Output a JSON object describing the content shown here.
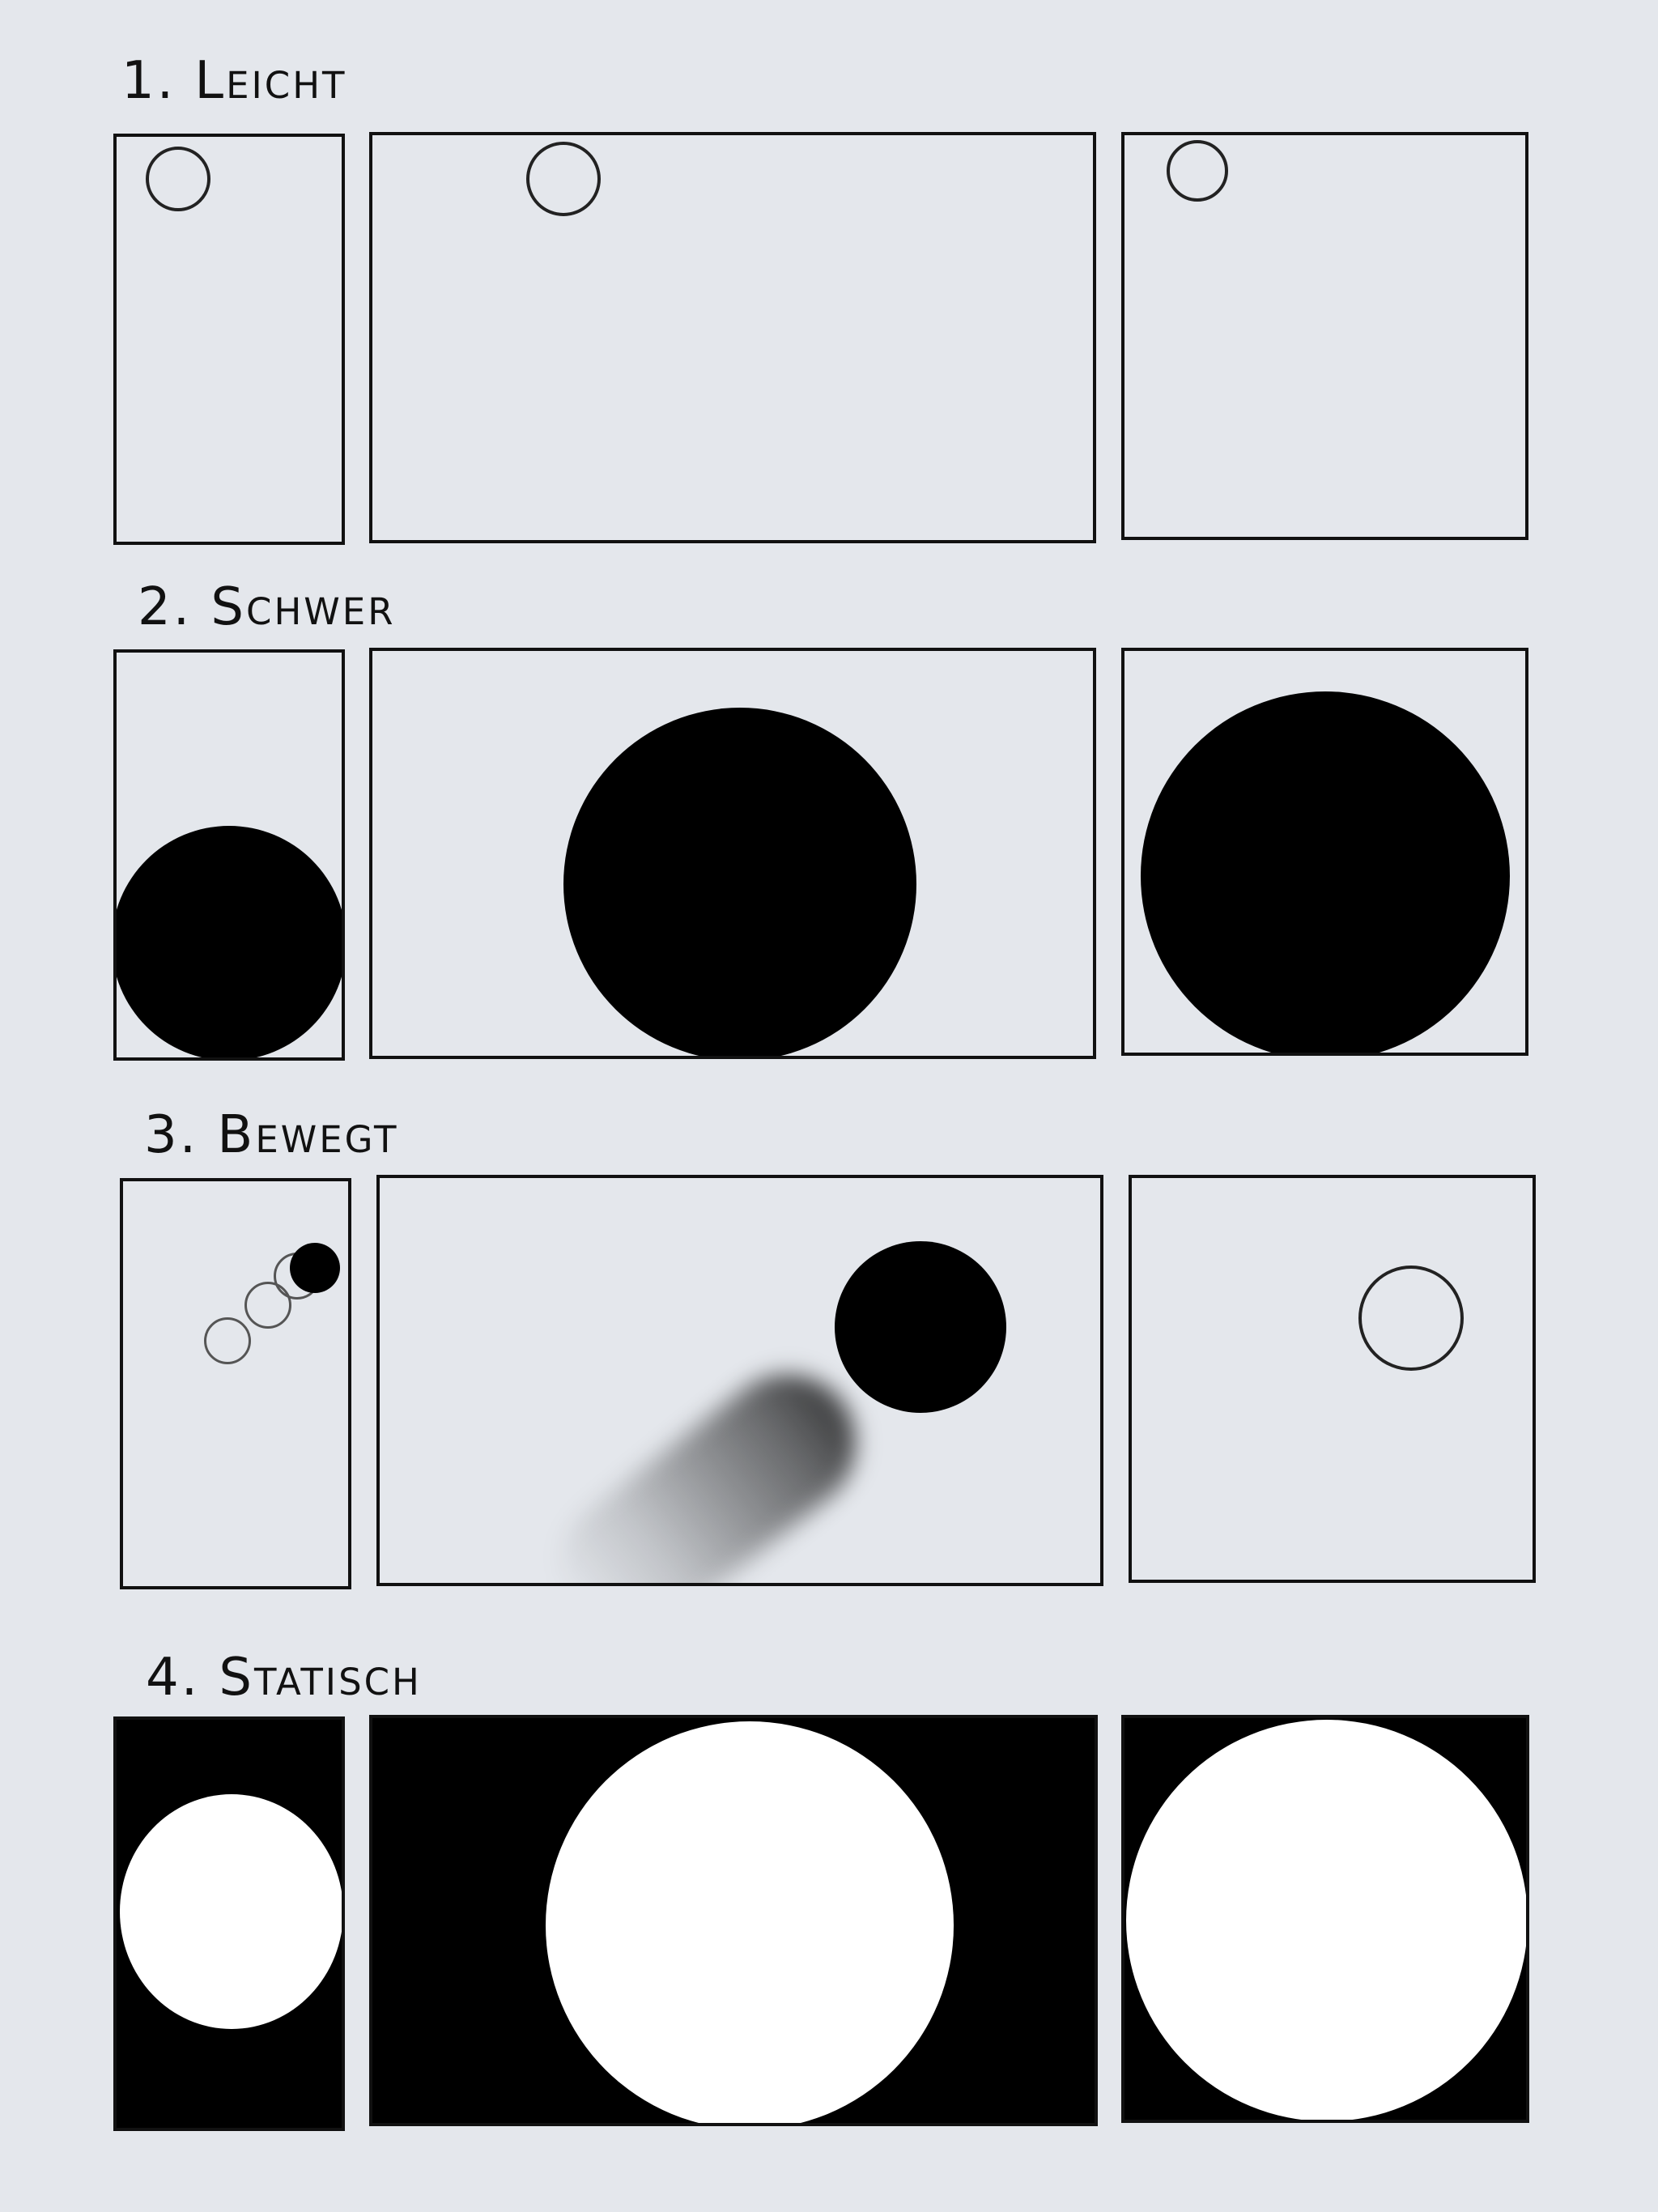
{
  "sections": [
    {
      "heading": "1. Leicht"
    },
    {
      "heading": "2. Schwer"
    },
    {
      "heading": "3. Bewegt"
    },
    {
      "heading": "4. Statisch"
    }
  ]
}
